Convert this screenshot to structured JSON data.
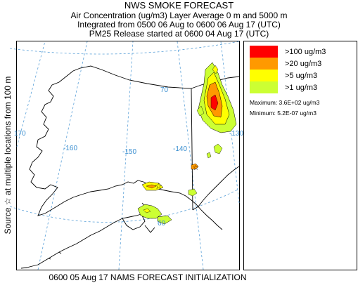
{
  "title": {
    "line1": "NWS SMOKE FORECAST",
    "line2": "Air Concentration (ug/m3) Layer Average    0 m  and  5000 m",
    "line3": "Integrated from 0500 06 Aug to 0600 06 Aug 17 (UTC)",
    "line4": "PM25 Release started at 0600 04 Aug 17 (UTC)"
  },
  "side_label": "Source ☆ at multiple locations    from  100 m",
  "footer": "0600 05 Aug 17 NAMS FORECAST INITIALIZATION",
  "map": {
    "lat_labels": [
      "70",
      "60"
    ],
    "lon_labels": [
      "170",
      "-160",
      "-150",
      "-140",
      "-130"
    ],
    "source_marker": "☆"
  },
  "legend": {
    "items": [
      {
        "label": ">100 ug/m3",
        "color": "#ff0000"
      },
      {
        "label": ">20 ug/m3",
        "color": "#ff9900"
      },
      {
        "label": ">5 ug/m3",
        "color": "#ffff00"
      },
      {
        "label": ">1 ug/m3",
        "color": "#ccff33"
      }
    ],
    "maximum": "Maximum: 3.6E+02 ug/m3",
    "minimum": "Minimum: 5.2E-07 ug/m3"
  }
}
